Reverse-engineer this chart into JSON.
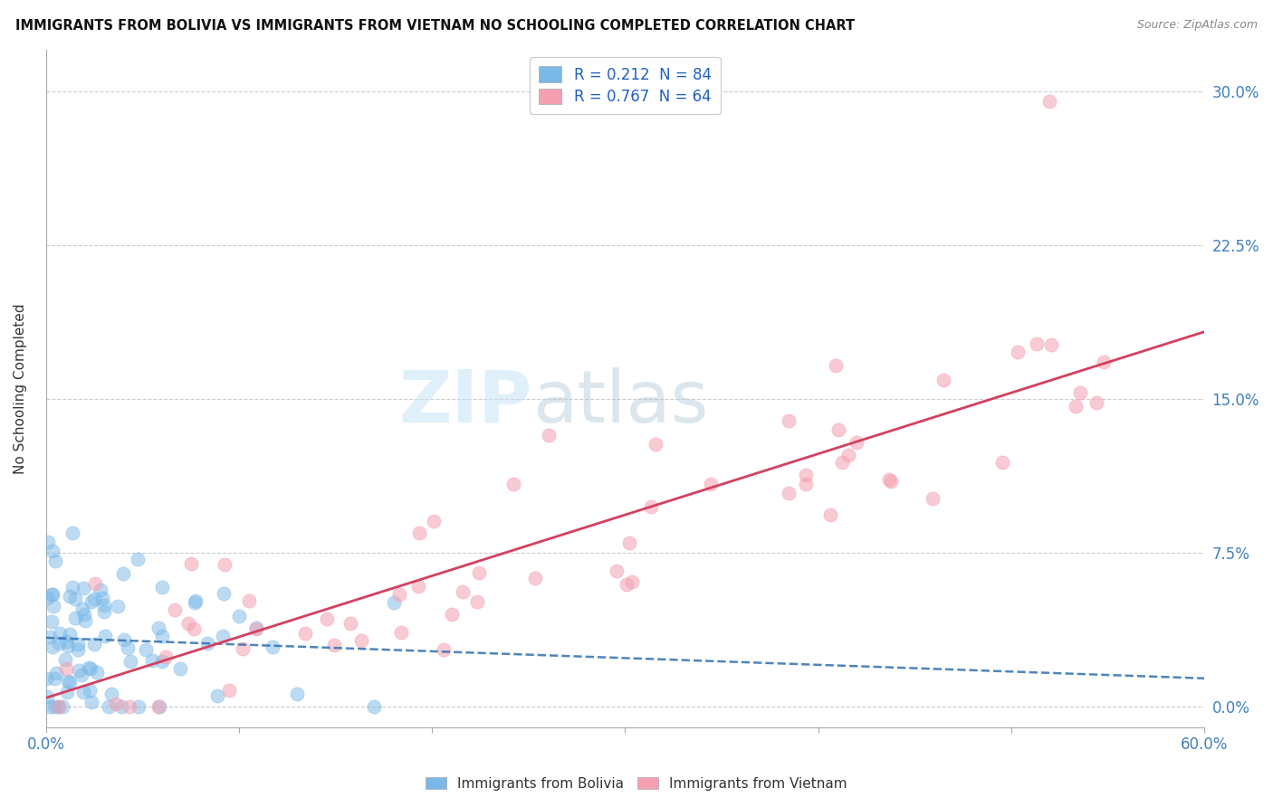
{
  "title": "IMMIGRANTS FROM BOLIVIA VS IMMIGRANTS FROM VIETNAM NO SCHOOLING COMPLETED CORRELATION CHART",
  "source": "Source: ZipAtlas.com",
  "ylabel": "No Schooling Completed",
  "ytick_labels": [
    "0.0%",
    "7.5%",
    "15.0%",
    "22.5%",
    "30.0%"
  ],
  "ytick_values": [
    0.0,
    0.075,
    0.15,
    0.225,
    0.3
  ],
  "xlim": [
    0.0,
    0.6
  ],
  "ylim": [
    -0.01,
    0.32
  ],
  "bolivia_color": "#7ab8e8",
  "vietnam_color": "#f4a0b0",
  "bolivia_R": 0.212,
  "bolivia_N": 84,
  "vietnam_R": 0.767,
  "vietnam_N": 64,
  "bolivia_line_color": "#3070b0",
  "vietnam_line_color": "#d44060",
  "watermark_zip": "ZIP",
  "watermark_atlas": "atlas",
  "legend_bolivia_label": "Immigrants from Bolivia",
  "legend_vietnam_label": "Immigrants from Vietnam",
  "bolivia_seed": 12345,
  "vietnam_seed": 67890
}
